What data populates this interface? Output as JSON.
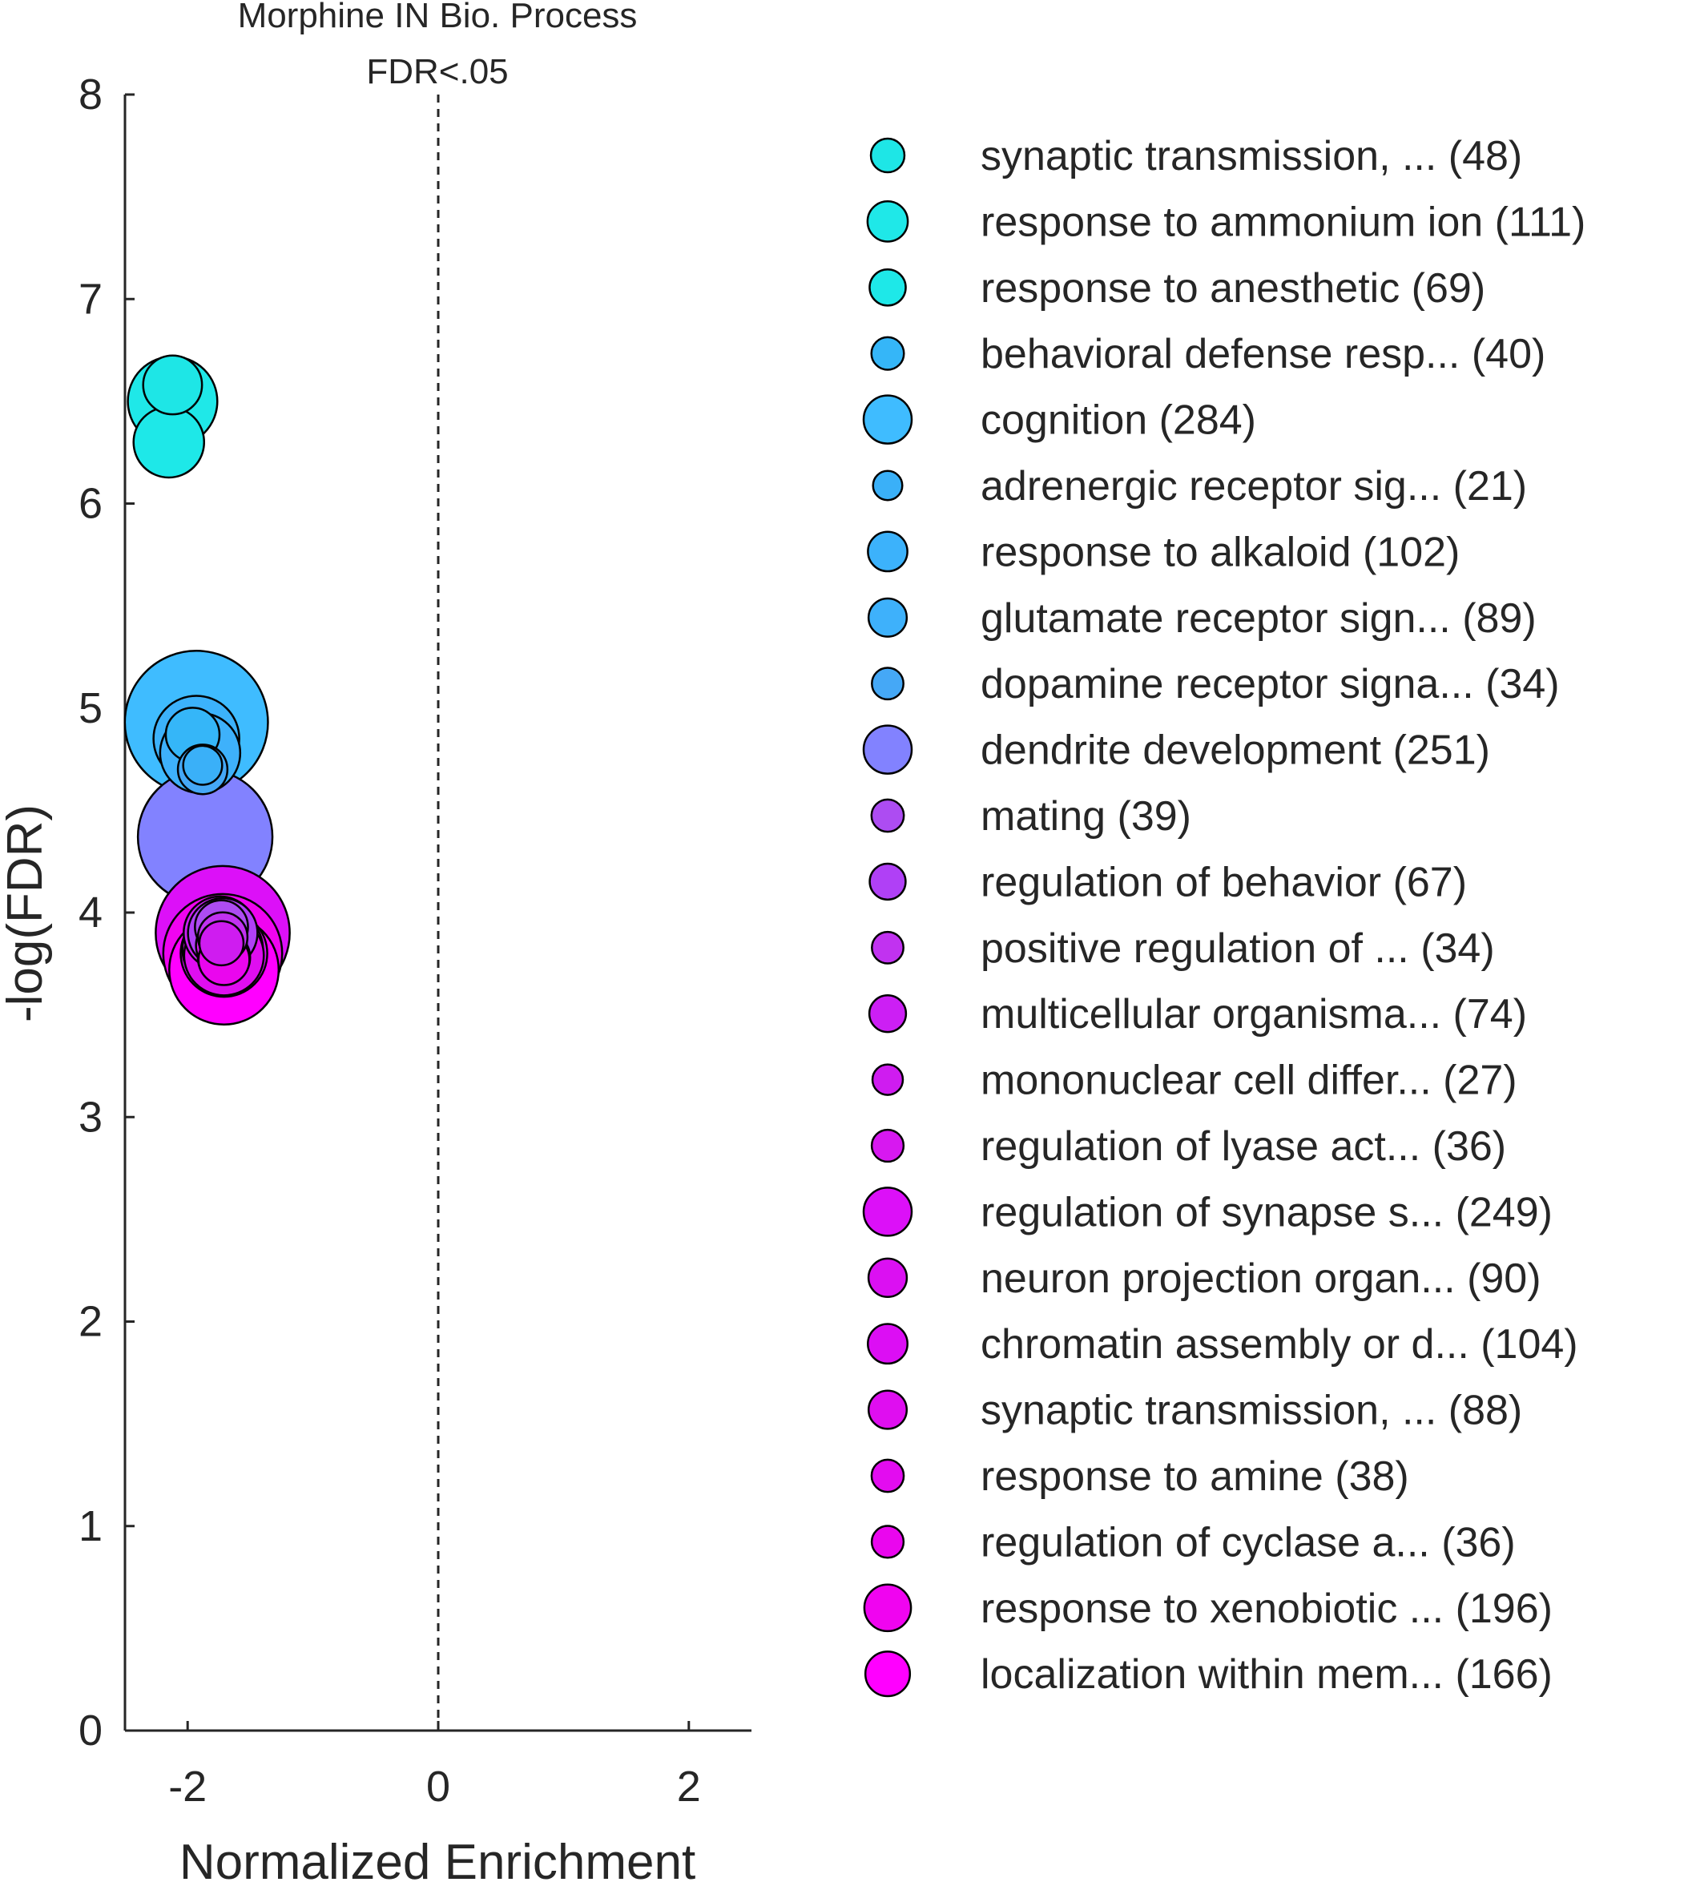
{
  "chart_data": {
    "type": "scatter",
    "title": "Morphine IN Bio. Process",
    "subtitle": "FDR<.05",
    "xlabel": "Normalized Enrichment",
    "ylabel": "-log(FDR)",
    "xlim": [
      -2.5,
      2.5
    ],
    "ylim": [
      0,
      8
    ],
    "xticks": [
      -2,
      0,
      2
    ],
    "yticks": [
      0,
      1,
      2,
      3,
      4,
      5,
      6,
      7,
      8
    ],
    "reference_line": {
      "x": 0,
      "style": "dashed"
    },
    "legend_position": "right",
    "point_size_encodes": "gene set size (number in parentheses)",
    "series": [
      {
        "name": "synaptic transmission, ... (48)",
        "size": 48,
        "x": -2.12,
        "y": 6.58,
        "color": "#1ee6e6"
      },
      {
        "name": "response to ammonium ion (111)",
        "size": 111,
        "x": -2.12,
        "y": 6.5,
        "color": "#1fe8e8"
      },
      {
        "name": "response to anesthetic (69)",
        "size": 69,
        "x": -2.15,
        "y": 6.3,
        "color": "#1ee8e8"
      },
      {
        "name": "behavioral defense resp... (40)",
        "size": 40,
        "x": -1.96,
        "y": 4.87,
        "color": "#35b6f8"
      },
      {
        "name": "cognition (284)",
        "size": 284,
        "x": -1.93,
        "y": 4.93,
        "color": "#3fbcff"
      },
      {
        "name": "adrenergic receptor sig... (21)",
        "size": 21,
        "x": -1.88,
        "y": 4.72,
        "color": "#3ab0f8"
      },
      {
        "name": "response to alkaloid (102)",
        "size": 102,
        "x": -1.93,
        "y": 4.85,
        "color": "#3cb2fb"
      },
      {
        "name": "glutamate receptor sign... (89)",
        "size": 89,
        "x": -1.9,
        "y": 4.78,
        "color": "#3eb1fb"
      },
      {
        "name": "dopamine receptor signa... (34)",
        "size": 34,
        "x": -1.88,
        "y": 4.7,
        "color": "#45a8f6"
      },
      {
        "name": "dendrite development (251)",
        "size": 251,
        "x": -1.86,
        "y": 4.37,
        "color": "#8282ff"
      },
      {
        "name": "mating (39)",
        "size": 39,
        "x": -1.73,
        "y": 3.93,
        "color": "#ad4cf2"
      },
      {
        "name": "regulation of behavior (67)",
        "size": 67,
        "x": -1.72,
        "y": 3.9,
        "color": "#b040f6"
      },
      {
        "name": "positive regulation of ... (34)",
        "size": 34,
        "x": -1.72,
        "y": 3.88,
        "color": "#c132f0"
      },
      {
        "name": "multicellular organisma... (74)",
        "size": 74,
        "x": -1.74,
        "y": 3.9,
        "color": "#cc1ff4"
      },
      {
        "name": "mononuclear cell differ... (27)",
        "size": 27,
        "x": -1.73,
        "y": 3.85,
        "color": "#cf1cf0"
      },
      {
        "name": "regulation of lyase act... (36)",
        "size": 36,
        "x": -1.73,
        "y": 3.84,
        "color": "#d718f0"
      },
      {
        "name": "regulation of synapse s... (249)",
        "size": 249,
        "x": -1.72,
        "y": 3.9,
        "color": "#dc10f8"
      },
      {
        "name": "neuron projection organ... (90)",
        "size": 90,
        "x": -1.72,
        "y": 3.82,
        "color": "#db10f2"
      },
      {
        "name": "chromatin assembly or d... (104)",
        "size": 104,
        "x": -1.71,
        "y": 3.8,
        "color": "#dc0ef4"
      },
      {
        "name": "synaptic transmission, ... (88)",
        "size": 88,
        "x": -1.71,
        "y": 3.79,
        "color": "#df0ef0"
      },
      {
        "name": "response to amine (38)",
        "size": 38,
        "x": -1.71,
        "y": 3.78,
        "color": "#e30cf0"
      },
      {
        "name": "regulation of cyclase a... (36)",
        "size": 36,
        "x": -1.71,
        "y": 3.77,
        "color": "#ea06ee"
      },
      {
        "name": "response to xenobiotic ... (196)",
        "size": 196,
        "x": -1.72,
        "y": 3.8,
        "color": "#f004f0"
      },
      {
        "name": "localization within mem... (166)",
        "size": 166,
        "x": -1.71,
        "y": 3.72,
        "color": "#ff00ff"
      }
    ]
  }
}
